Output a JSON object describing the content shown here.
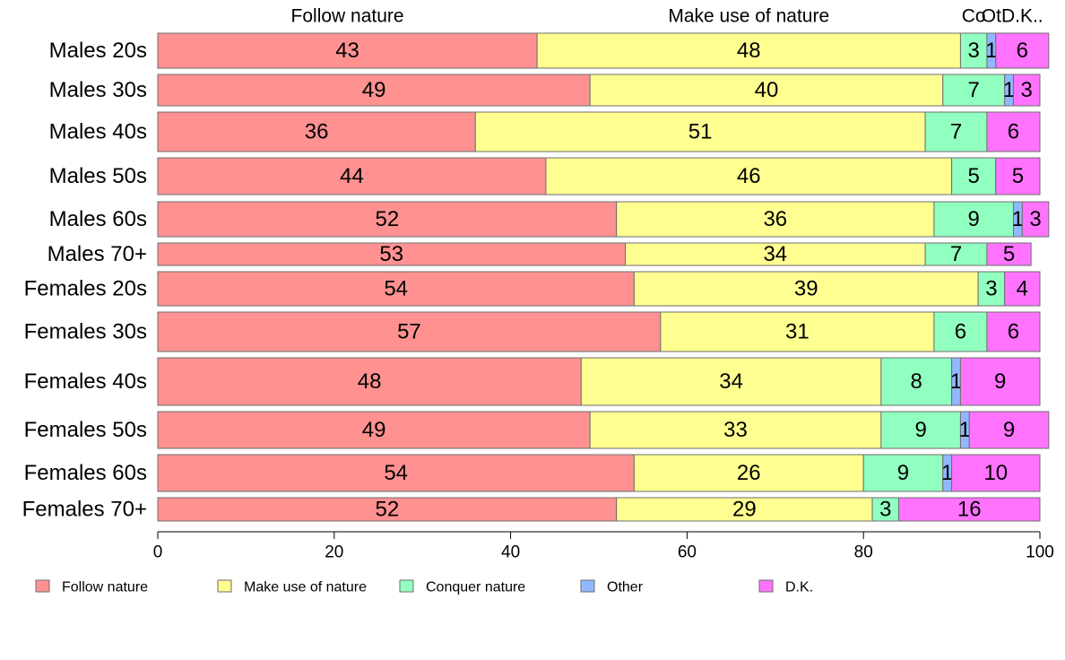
{
  "chart_data": {
    "type": "bar",
    "orientation": "horizontal",
    "stacked": true,
    "xlim": [
      0,
      100
    ],
    "xticks": [
      0,
      20,
      40,
      60,
      80,
      100
    ],
    "legend_position": "bottom",
    "grid": false,
    "categories": [
      "Males 20s",
      "Males 30s",
      "Males 40s",
      "Males 50s",
      "Males 60s",
      "Males 70+",
      "Females 20s",
      "Females 30s",
      "Females 40s",
      "Females 50s",
      "Females 60s",
      "Females 70+"
    ],
    "series": [
      {
        "name": "Follow nature",
        "color": "#ff9191",
        "values": [
          43,
          49,
          36,
          44,
          52,
          53,
          54,
          57,
          48,
          49,
          54,
          52
        ]
      },
      {
        "name": "Make use of nature",
        "color": "#ffff91",
        "values": [
          48,
          40,
          51,
          46,
          36,
          34,
          39,
          31,
          34,
          33,
          26,
          29
        ]
      },
      {
        "name": "Conquer nature",
        "color": "#91ffbf",
        "values": [
          3,
          7,
          7,
          5,
          9,
          7,
          3,
          6,
          8,
          9,
          9,
          3
        ]
      },
      {
        "name": "Other",
        "color": "#91b8ff",
        "values": [
          1,
          1,
          0,
          0,
          1,
          0,
          0,
          0,
          1,
          1,
          1,
          0
        ]
      },
      {
        "name": "D.K.",
        "color": "#ff73ff",
        "values": [
          6,
          3,
          6,
          5,
          3,
          5,
          4,
          6,
          9,
          9,
          10,
          16
        ]
      }
    ],
    "top_labels": [
      "Follow nature",
      "Make use of nature",
      "Co",
      "Ot",
      "D.K.."
    ]
  }
}
